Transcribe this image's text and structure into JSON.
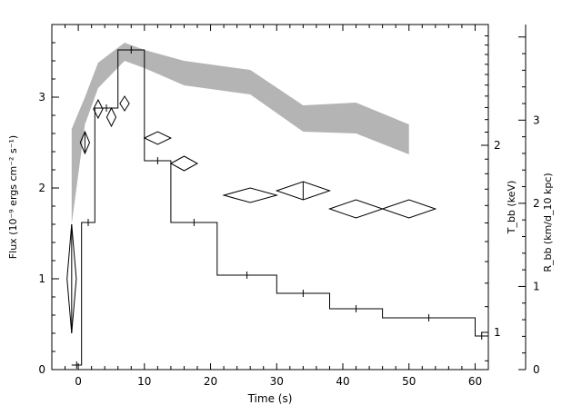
{
  "chart_data": {
    "type": "line",
    "xlabel": "Time (s)",
    "xlim": [
      -4,
      62
    ],
    "x_ticks": [
      0,
      10,
      20,
      30,
      40,
      50,
      60
    ],
    "left_axis": {
      "label": "Flux (10⁻⁹ ergs cm⁻² s⁻¹)",
      "ylim": [
        0,
        3.8
      ],
      "ticks": [
        0,
        1,
        2,
        3
      ]
    },
    "right_axis_inner": {
      "label": "T_bb (keV)",
      "scale": "log",
      "ticks": [
        1,
        2
      ]
    },
    "right_axis_outer": {
      "label": "R_bb (km/d_10 kpc)",
      "ylim": [
        0,
        4.15
      ],
      "ticks": [
        0,
        1,
        2,
        3
      ]
    },
    "flux_histogram": {
      "bins": [
        {
          "x0": -1,
          "x1": 0.5,
          "value": 0.05
        },
        {
          "x0": 0.5,
          "x1": 2.5,
          "value": 1.62
        },
        {
          "x0": 2.5,
          "x1": 6,
          "value": 2.88
        },
        {
          "x0": 6,
          "x1": 10,
          "value": 3.52
        },
        {
          "x0": 10,
          "x1": 14,
          "value": 2.3
        },
        {
          "x0": 14,
          "x1": 21,
          "value": 1.62
        },
        {
          "x0": 21,
          "x1": 30,
          "value": 1.04
        },
        {
          "x0": 30,
          "x1": 38,
          "value": 0.84
        },
        {
          "x0": 38,
          "x1": 46,
          "value": 0.67
        },
        {
          "x0": 46,
          "x1": 60,
          "value": 0.57
        },
        {
          "x0": 60,
          "x1": 62,
          "value": 0.37
        }
      ]
    },
    "temperature_diamonds": [
      {
        "x": -1,
        "dx": 0.7,
        "y": 1.0,
        "dy": 0.6
      },
      {
        "x": 1,
        "dx": 0.7,
        "y": 2.5,
        "dy": 0.12
      },
      {
        "x": 3,
        "dx": 0.7,
        "y": 2.87,
        "dy": 0.1
      },
      {
        "x": 5,
        "dx": 0.7,
        "y": 2.78,
        "dy": 0.1
      },
      {
        "x": 7,
        "dx": 0.7,
        "y": 2.93,
        "dy": 0.08
      },
      {
        "x": 12,
        "dx": 2,
        "y": 2.55,
        "dy": 0.07
      },
      {
        "x": 16,
        "dx": 2,
        "y": 2.27,
        "dy": 0.08
      },
      {
        "x": 26,
        "dx": 4,
        "y": 1.92,
        "dy": 0.08
      },
      {
        "x": 34,
        "dx": 4,
        "y": 1.97,
        "dy": 0.1
      },
      {
        "x": 42,
        "dx": 4,
        "y": 1.77,
        "dy": 0.1
      },
      {
        "x": 50,
        "dx": 4,
        "y": 1.77,
        "dy": 0.1
      }
    ],
    "radius_band": {
      "x": [
        -1,
        1,
        3,
        7,
        10,
        16,
        26,
        34,
        42,
        50
      ],
      "upper": [
        2.65,
        3.0,
        3.38,
        3.6,
        3.52,
        3.4,
        3.3,
        2.91,
        2.94,
        2.7
      ],
      "lower": [
        1.6,
        2.7,
        3.1,
        3.4,
        3.32,
        3.13,
        3.03,
        2.62,
        2.6,
        2.37
      ]
    }
  }
}
